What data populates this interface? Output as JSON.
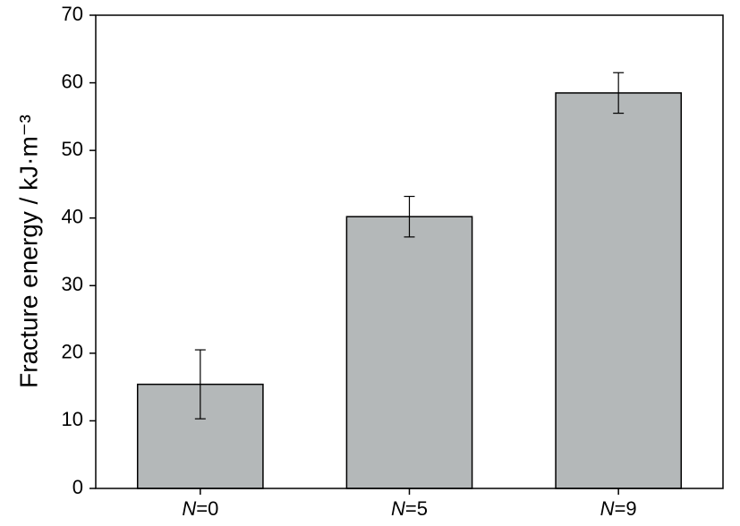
{
  "chart_data": {
    "type": "bar",
    "y_label": "Fracture energy / kJ·m⁻³",
    "categories": [
      "N=0",
      "N=5",
      "N=9"
    ],
    "values": [
      15.4,
      40.2,
      58.5
    ],
    "errors": [
      5.1,
      3.0,
      3.0
    ],
    "color": "#b4b8b9",
    "ylim": [
      0,
      70
    ],
    "yticks": [
      0,
      10,
      20,
      30,
      40,
      50,
      60,
      70
    ],
    "grid": false
  }
}
